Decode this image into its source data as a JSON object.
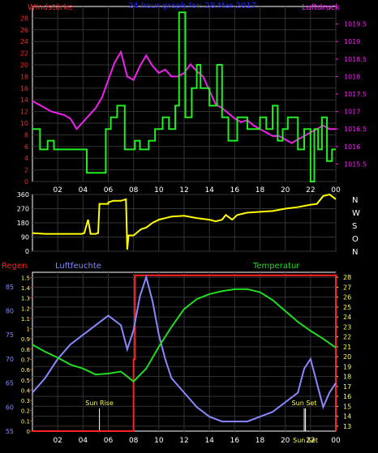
{
  "header": {
    "left_label": "Windstärke",
    "center_label": "24 hour graph for: 28 Mar 2017",
    "right_label": "Luftdruck"
  },
  "bottom_header": {
    "rain_label": "Regen",
    "humidity_label": "Luftfeuchte",
    "temperature_label": "Temperatur"
  },
  "compass_labels": [
    "N",
    "W",
    "S",
    "O",
    "N"
  ],
  "x_ticks": [
    "02",
    "04",
    "06",
    "08",
    "10",
    "12",
    "14",
    "16",
    "18",
    "20",
    "22",
    "00"
  ],
  "colors": {
    "wind": "#22ee22",
    "pressure": "#ee22ee",
    "direction": "#ffff00",
    "humidity": "#8888ff",
    "temperature": "#22dd22",
    "rain": "#ff2222",
    "axis": "#ffffff",
    "wind_axis_text": "#ff2222",
    "pressure_axis_text": "#ee22ee",
    "humidity_axis_text": "#8888ff",
    "temperature_axis_text": "#22dd22",
    "grid": "#333333"
  },
  "chart_data": [
    {
      "type": "line",
      "name": "wind-pressure",
      "x_range": [
        0,
        24
      ],
      "y_left": {
        "label": "Windstärke",
        "range": [
          0,
          30
        ],
        "ticks": [
          0,
          2,
          4,
          6,
          8,
          10,
          12,
          14,
          16,
          18,
          20,
          22,
          24,
          26,
          28
        ]
      },
      "y_right": {
        "label": "Luftdruck",
        "range": [
          1015.0,
          1020.0
        ],
        "ticks": [
          1015.5,
          1016,
          1016.5,
          1017,
          1017.5,
          1018,
          1018.5,
          1019,
          1019.5
        ]
      },
      "series": [
        {
          "name": "Windstärke",
          "step": true,
          "x": [
            0,
            0.6,
            0.6,
            1.2,
            1.2,
            1.7,
            1.7,
            4.3,
            4.3,
            5.8,
            5.8,
            6.2,
            6.2,
            6.7,
            6.7,
            7.3,
            7.3,
            8.1,
            8.1,
            8.5,
            8.5,
            9.2,
            9.2,
            9.7,
            9.7,
            10.3,
            10.3,
            10.8,
            10.8,
            11.3,
            11.3,
            11.6,
            11.6,
            12.1,
            12.1,
            12.6,
            12.6,
            13.0,
            13.0,
            13.3,
            13.3,
            14.0,
            14.0,
            14.6,
            14.6,
            15.0,
            15.0,
            15.5,
            15.5,
            16.2,
            16.2,
            17.0,
            17.0,
            18.0,
            18.0,
            18.5,
            18.5,
            19.0,
            19.0,
            19.4,
            19.4,
            19.8,
            19.8,
            20.2,
            20.2,
            21.0,
            21.0,
            21.5,
            21.5,
            22.0,
            22.0,
            22.3,
            22.3,
            22.6,
            22.6,
            22.9,
            22.9,
            23.3,
            23.3,
            23.7,
            23.7,
            24.0
          ],
          "values": [
            9,
            9,
            5.5,
            5.5,
            7,
            7,
            5.5,
            5.5,
            1.5,
            1.5,
            9,
            9,
            11,
            11,
            13,
            13,
            5.5,
            5.5,
            7,
            7,
            5.5,
            5.5,
            7,
            7,
            9,
            9,
            11,
            11,
            9,
            9,
            13,
            13,
            29,
            29,
            11,
            11,
            16,
            16,
            20,
            20,
            16,
            16,
            13,
            13,
            20,
            20,
            11,
            11,
            7,
            7,
            11,
            11,
            9,
            9,
            11,
            11,
            9,
            9,
            13,
            13,
            7,
            7,
            9,
            9,
            11,
            11,
            5.5,
            5.5,
            9,
            9,
            0,
            0,
            9,
            9,
            5.5,
            5.5,
            11,
            11,
            3.5,
            3.5,
            5.5,
            5.5
          ]
        },
        {
          "name": "Luftdruck",
          "x": [
            0,
            0.5,
            1.0,
            1.5,
            2.0,
            2.5,
            3.0,
            3.5,
            4.0,
            4.5,
            5.0,
            5.5,
            6.0,
            6.5,
            7.0,
            7.5,
            8.0,
            8.5,
            9.0,
            9.5,
            10.0,
            10.5,
            11.0,
            11.5,
            12.0,
            12.5,
            13.0,
            13.5,
            14.0,
            14.5,
            15.0,
            15.5,
            16.0,
            16.5,
            17.0,
            17.5,
            18.0,
            18.5,
            19.0,
            19.5,
            20.0,
            20.5,
            21.0,
            21.5,
            22.0,
            22.5,
            23.0,
            23.5,
            24.0
          ],
          "values": [
            1017.3,
            1017.2,
            1017.1,
            1017.0,
            1016.95,
            1016.9,
            1016.8,
            1016.5,
            1016.7,
            1016.9,
            1017.1,
            1017.4,
            1017.9,
            1018.4,
            1018.7,
            1018.0,
            1017.9,
            1018.3,
            1018.6,
            1018.3,
            1018.1,
            1018.2,
            1018.0,
            1018.0,
            1018.1,
            1018.35,
            1018.15,
            1018.0,
            1017.6,
            1017.2,
            1017.1,
            1016.95,
            1016.8,
            1016.7,
            1016.75,
            1016.6,
            1016.5,
            1016.4,
            1016.3,
            1016.3,
            1016.2,
            1016.1,
            1016.2,
            1016.3,
            1016.4,
            1016.5,
            1016.6,
            1016.5,
            1016.5
          ]
        }
      ]
    },
    {
      "type": "line",
      "name": "wind-direction",
      "x_range": [
        0,
        24
      ],
      "y_left": {
        "range": [
          0,
          360
        ],
        "ticks": [
          0,
          90,
          180,
          270,
          360
        ]
      },
      "series": [
        {
          "name": "Windrichtung",
          "x": [
            0,
            1.0,
            2.0,
            3.0,
            3.9,
            4.1,
            4.4,
            4.6,
            5.0,
            5.2,
            5.3,
            6.0,
            6.0,
            6.4,
            7.0,
            7.4,
            7.5,
            7.6,
            7.8,
            8.0,
            8.6,
            9.0,
            9.5,
            10.0,
            10.5,
            11.0,
            12.0,
            13.0,
            14.0,
            14.5,
            15.0,
            15.3,
            15.8,
            16.2,
            17.0,
            18.0,
            19.0,
            20.0,
            21.0,
            22.0,
            22.5,
            23.0,
            23.5,
            24.0
          ],
          "values": [
            115,
            110,
            110,
            110,
            110,
            115,
            200,
            110,
            110,
            115,
            300,
            300,
            310,
            320,
            320,
            330,
            10,
            100,
            100,
            100,
            140,
            150,
            180,
            200,
            210,
            220,
            225,
            210,
            200,
            190,
            200,
            230,
            200,
            230,
            245,
            250,
            255,
            270,
            280,
            295,
            300,
            350,
            360,
            330
          ]
        }
      ]
    },
    {
      "type": "line",
      "name": "rain-humidity-temperature",
      "x_range": [
        0,
        24
      ],
      "y_rain": {
        "label": "Regen",
        "range": [
          0,
          1.55
        ],
        "ticks": [
          0,
          0.1,
          0.2,
          0.3,
          0.4,
          0.5,
          0.6,
          0.7,
          0.8,
          0.9,
          1.0,
          1.1,
          1.2,
          1.3,
          1.4,
          1.5
        ]
      },
      "y_humidity": {
        "label": "Luftfeuchte",
        "range": [
          55,
          88
        ],
        "ticks": [
          55,
          60,
          65,
          70,
          75,
          80,
          85
        ]
      },
      "y_temperature": {
        "label": "Temperatur",
        "range": [
          12.5,
          28.5
        ],
        "ticks": [
          13,
          14,
          15,
          16,
          17,
          18,
          19,
          20,
          21,
          22,
          23,
          24,
          25,
          26,
          27,
          28
        ]
      },
      "annotations": [
        {
          "label": "Sun Rise",
          "x": 5.3
        },
        {
          "label": "Sun Set",
          "x": 21.5
        },
        {
          "label": "Sun Set",
          "x": 21.6
        }
      ],
      "series": [
        {
          "name": "Regen",
          "step": true,
          "x": [
            0,
            8.0,
            8.0,
            8.1,
            8.1,
            9.1,
            9.1,
            24.0,
            24.0
          ],
          "values": [
            0,
            0,
            0.7,
            0.7,
            1.52,
            1.52,
            1.52,
            1.52,
            0
          ]
        },
        {
          "name": "Luftfeuchte",
          "x": [
            0,
            1.0,
            2.0,
            3.0,
            4.0,
            4.5,
            5.0,
            5.5,
            6.0,
            7.0,
            7.5,
            8.0,
            8.5,
            9.0,
            9.5,
            10.0,
            10.5,
            11.0,
            12.0,
            13.0,
            14.0,
            15.0,
            16.0,
            17.0,
            18.0,
            19.0,
            20.0,
            21.0,
            21.5,
            22.0,
            22.5,
            23.0,
            23.5,
            24.0
          ],
          "values": [
            63,
            66,
            70,
            73,
            75,
            76,
            77,
            78,
            79,
            77,
            72,
            76,
            83,
            87,
            82,
            75,
            70,
            66,
            63,
            60,
            58,
            57,
            57,
            57,
            58,
            59,
            61,
            63,
            68,
            70,
            65,
            60,
            63,
            65
          ]
        },
        {
          "name": "Temperatur",
          "x": [
            0,
            1.0,
            2.0,
            3.0,
            4.0,
            5.0,
            6.0,
            7.0,
            8.0,
            9.0,
            10.0,
            11.0,
            12.0,
            13.0,
            14.0,
            15.0,
            16.0,
            17.0,
            18.0,
            19.0,
            20.0,
            21.0,
            22.0,
            23.0,
            24.0
          ],
          "values": [
            21.2,
            20.5,
            19.9,
            19.2,
            18.8,
            18.2,
            18.3,
            18.5,
            17.5,
            18.8,
            21.0,
            23.0,
            24.8,
            25.8,
            26.3,
            26.6,
            26.8,
            26.8,
            26.5,
            25.7,
            24.6,
            23.5,
            22.6,
            21.8,
            20.9
          ]
        }
      ]
    }
  ]
}
